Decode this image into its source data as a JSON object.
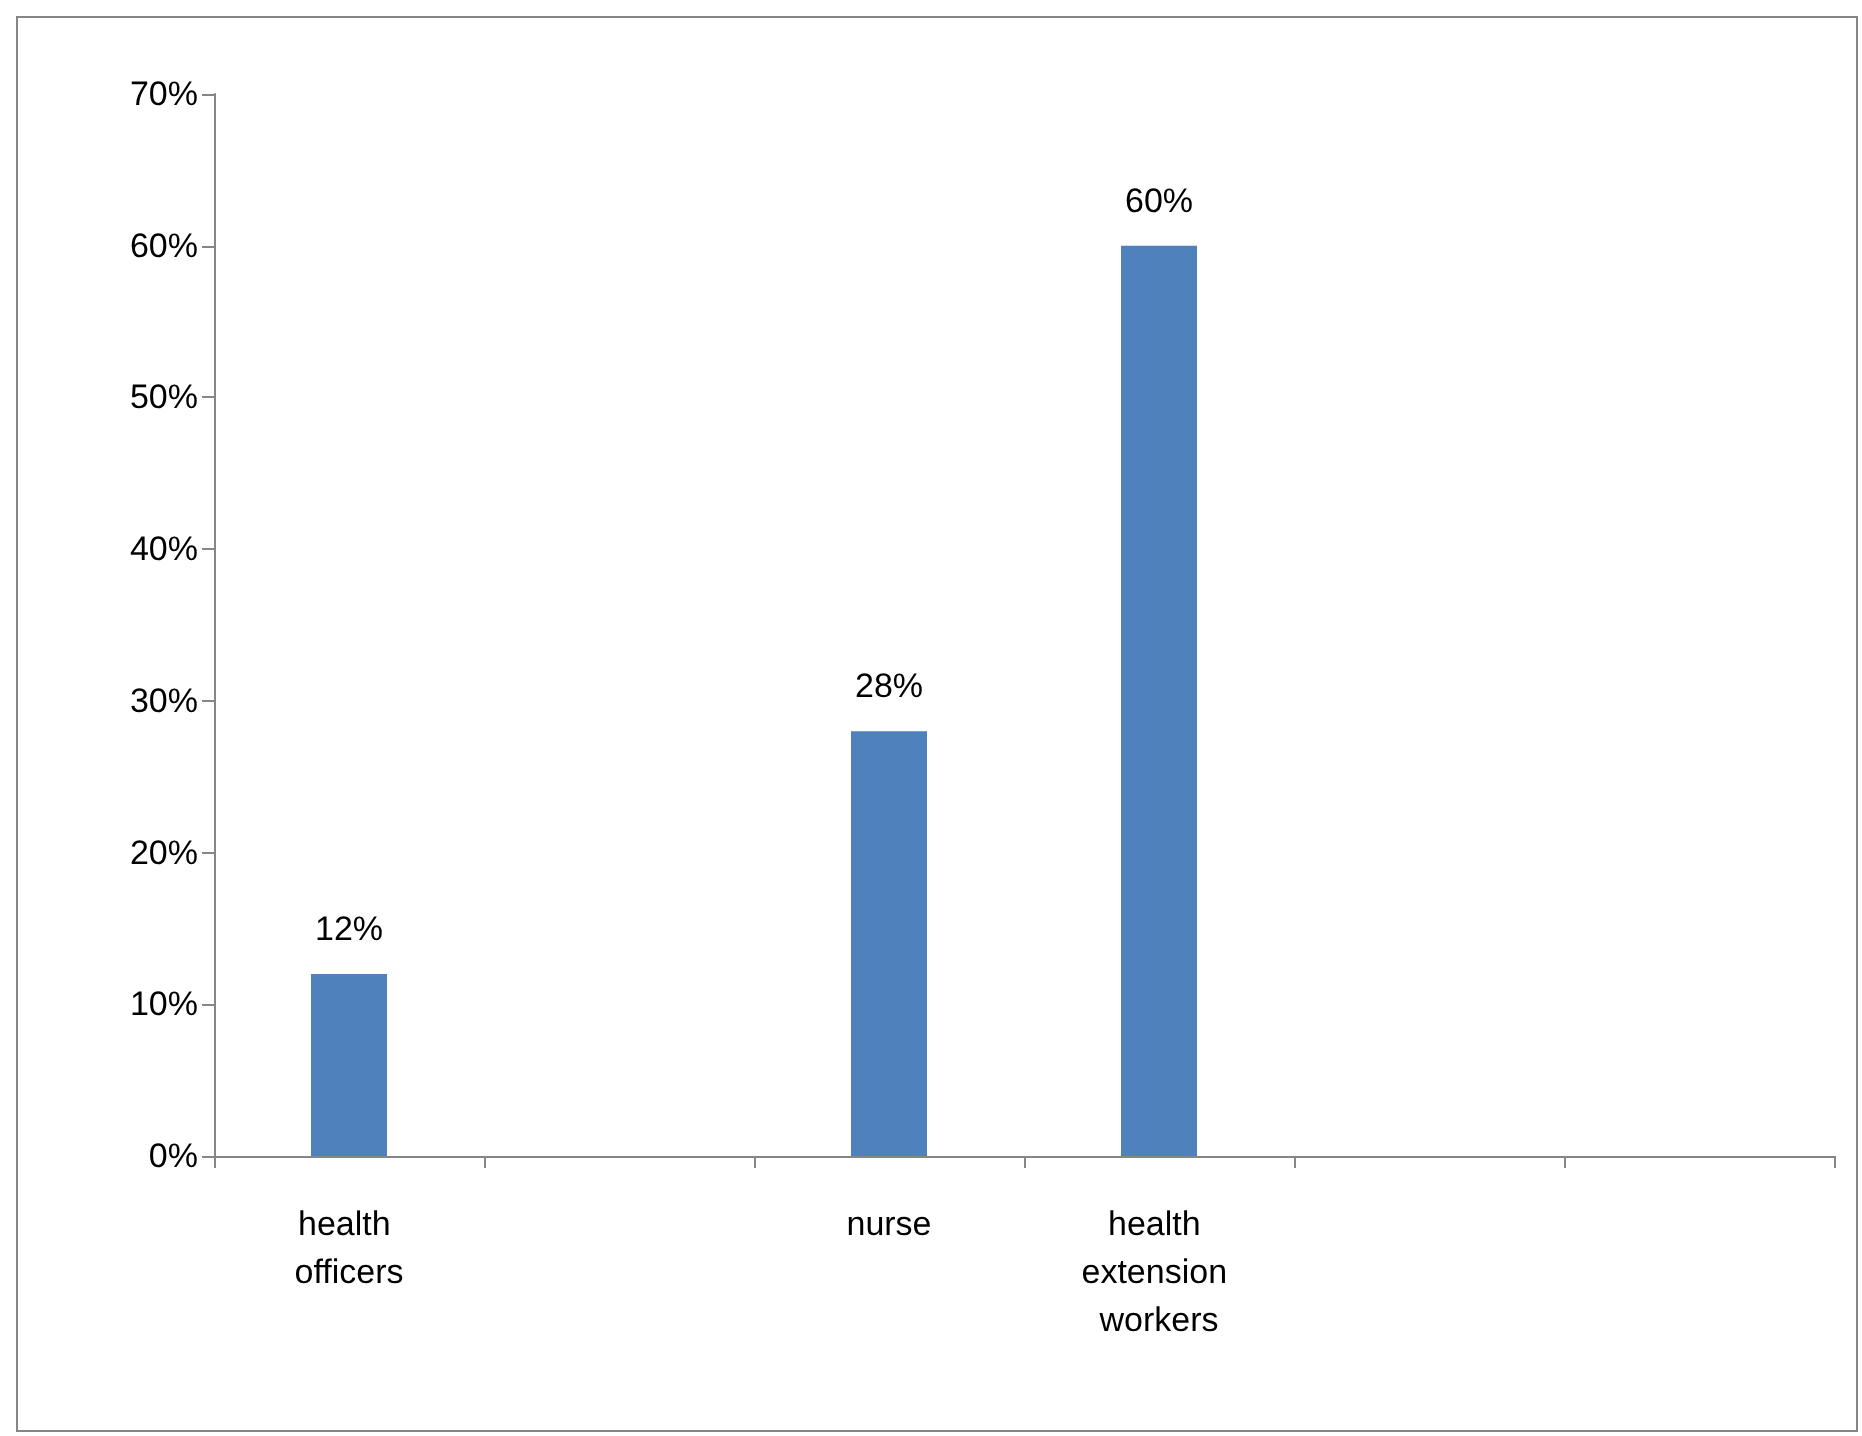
{
  "chart_data": {
    "type": "bar",
    "categories": [
      "health officers",
      null,
      "nurse",
      "health extension workers",
      null,
      null
    ],
    "series": [
      {
        "color": "#4f81bd",
        "values": [
          12,
          null,
          28,
          60,
          null,
          null
        ],
        "value_labels": [
          "12%",
          null,
          "28%",
          "60%",
          null,
          null
        ]
      }
    ],
    "ylim": [
      0,
      70
    ],
    "yticks": [
      {
        "value": 0,
        "label": "0%"
      },
      {
        "value": 10,
        "label": "10%"
      },
      {
        "value": 20,
        "label": "20%"
      },
      {
        "value": 30,
        "label": "30%"
      },
      {
        "value": 40,
        "label": "40%"
      },
      {
        "value": 50,
        "label": "50%"
      },
      {
        "value": 60,
        "label": "60%"
      },
      {
        "value": 70,
        "label": "70%"
      }
    ],
    "grid": false
  }
}
